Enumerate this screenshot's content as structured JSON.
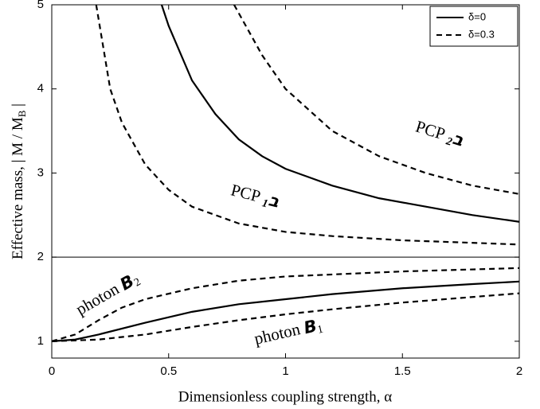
{
  "chart_data": {
    "type": "line",
    "xlabel": "Dimensionless coupling strength, α",
    "ylabel": {
      "text": "Effective mass, | M / M",
      "sub": "B",
      "tail": " |"
    },
    "xlim": [
      0,
      2
    ],
    "ylim": [
      0.8,
      5
    ],
    "xticks": [
      0,
      0.5,
      1,
      1.5,
      2
    ],
    "yticks": [
      1,
      2,
      3,
      4,
      5
    ],
    "hline": 2,
    "legend": "upper right",
    "legend_entries": [
      {
        "name": "δ=0",
        "dash": false
      },
      {
        "name": "δ=0.3",
        "dash": true
      }
    ],
    "series": [
      {
        "style": "δ=0",
        "x": [
          0.47,
          0.5,
          0.6,
          0.7,
          0.8,
          0.9,
          1.0,
          1.2,
          1.4,
          1.6,
          1.8,
          2.0
        ],
        "values": [
          5,
          4.75,
          4.1,
          3.7,
          3.4,
          3.2,
          3.05,
          2.85,
          2.7,
          2.6,
          2.5,
          2.42
        ]
      },
      {
        "style": "δ=0.3",
        "x": [
          0.19,
          0.25,
          0.3,
          0.4,
          0.5,
          0.6,
          0.8,
          1.0,
          1.2,
          1.5,
          2.0
        ],
        "values": [
          5,
          4.0,
          3.6,
          3.1,
          2.8,
          2.6,
          2.4,
          2.3,
          2.25,
          2.2,
          2.15
        ]
      },
      {
        "style": "δ=0.3",
        "x": [
          0.78,
          0.9,
          1.0,
          1.2,
          1.4,
          1.6,
          1.8,
          2.0
        ],
        "values": [
          5,
          4.4,
          4.0,
          3.5,
          3.2,
          3.0,
          2.85,
          2.75
        ]
      },
      {
        "style": "δ=0",
        "x": [
          0,
          0.1,
          0.2,
          0.4,
          0.6,
          0.8,
          1.0,
          1.2,
          1.5,
          1.8,
          2.0
        ],
        "values": [
          1,
          1.02,
          1.08,
          1.22,
          1.35,
          1.44,
          1.5,
          1.56,
          1.63,
          1.68,
          1.71
        ]
      },
      {
        "style": "δ=0.3",
        "x": [
          0,
          0.1,
          0.2,
          0.3,
          0.4,
          0.6,
          0.8,
          1.0,
          1.5,
          2.0
        ],
        "values": [
          1,
          1.08,
          1.25,
          1.4,
          1.5,
          1.63,
          1.72,
          1.77,
          1.83,
          1.87
        ]
      },
      {
        "style": "δ=0.3",
        "x": [
          0,
          0.2,
          0.4,
          0.6,
          0.8,
          1.0,
          1.2,
          1.5,
          2.0
        ],
        "values": [
          1,
          1.02,
          1.08,
          1.17,
          1.25,
          1.32,
          1.38,
          1.46,
          1.57
        ]
      }
    ],
    "annotations": [
      {
        "text": "PCP ",
        "symbol": "ב",
        "sub": "2"
      },
      {
        "text": "PCP ",
        "symbol": "ב",
        "sub": "1"
      },
      {
        "text": "photon ",
        "symbol": "B",
        "sub": "2"
      },
      {
        "text": "photon ",
        "symbol": "B",
        "sub": "1"
      }
    ]
  }
}
